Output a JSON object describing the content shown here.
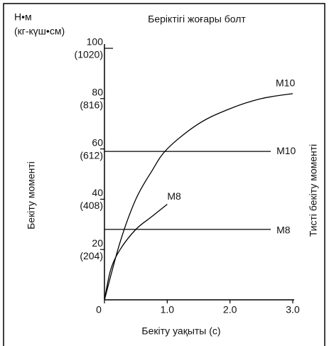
{
  "chart_data": {
    "type": "line",
    "title": "Беріктігі жоғары болт",
    "y_unit_labels": [
      "Н•м",
      "(кг-күш•см)"
    ],
    "ylabel": "Бекіту моменті",
    "y2label": "Тисті бекіту моменті",
    "xlabel": "Бекіту уақыты (с)",
    "xlim": [
      0,
      3
    ],
    "ylim": [
      0,
      100
    ],
    "xticks": [
      0,
      {
        "value": 1,
        "label": "1.0"
      },
      {
        "value": 2,
        "label": "2.0"
      },
      {
        "value": 3,
        "label": "3.0"
      }
    ],
    "yticks": [
      20,
      40,
      60,
      80,
      100
    ],
    "ytick_secondary_labels": [
      "(204)",
      "(408)",
      "(612)",
      "(816)",
      "(1020)"
    ],
    "color": "#000000",
    "series": [
      {
        "name": "M10",
        "x": [
          0,
          0.25,
          0.5,
          0.75,
          1,
          1.5,
          2,
          2.5,
          3
        ],
        "values": [
          0,
          23,
          40,
          51,
          60,
          70,
          76,
          80,
          82
        ]
      },
      {
        "name": "M10",
        "x": [
          0,
          2.65
        ],
        "values": [
          59,
          59
        ]
      },
      {
        "name": "M8",
        "x": [
          0,
          0.1,
          0.25,
          0.5,
          0.75,
          1
        ],
        "values": [
          0,
          12,
          20,
          28,
          33,
          38
        ]
      },
      {
        "name": "M8",
        "x": [
          0,
          2.65
        ],
        "values": [
          28,
          28
        ]
      }
    ]
  }
}
